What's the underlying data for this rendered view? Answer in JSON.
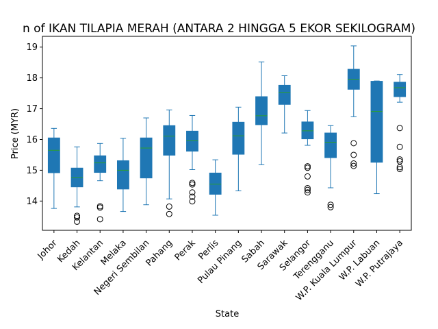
{
  "chart_data": {
    "type": "box",
    "title": "n of IKAN TILAPIA MERAH (ANTARA 2 HINGGA 5 EKOR SEKILOGRAM)",
    "xlabel": "State",
    "ylabel": "Price (MYR)",
    "ylim": [
      13.05,
      19.35
    ],
    "yticks": [
      14,
      15,
      16,
      17,
      18,
      19
    ],
    "grid": false,
    "colors": {
      "box": "#1f77b4",
      "median": "#2ca02c",
      "flier": "#000000"
    },
    "categories": [
      "Johor",
      "Kedah",
      "Kelantan",
      "Melaka",
      "Negeri Sembilan",
      "Pahang",
      "Perak",
      "Perlis",
      "Pulau Pinang",
      "Sabah",
      "Sarawak",
      "Selangor",
      "Terengganu",
      "W.P. Kuala Lumpur",
      "W.P. Labuan",
      "W.P. Putrajaya"
    ],
    "boxes": [
      {
        "whislo": 13.76,
        "q1": 14.92,
        "med": 15.65,
        "q3": 16.05,
        "whishi": 16.36,
        "fliers": []
      },
      {
        "whislo": 13.81,
        "q1": 14.46,
        "med": 14.76,
        "q3": 15.07,
        "whishi": 15.76,
        "fliers": [
          13.52,
          13.47,
          13.33
        ]
      },
      {
        "whislo": 14.66,
        "q1": 14.93,
        "med": 15.24,
        "q3": 15.47,
        "whishi": 15.87,
        "fliers": [
          13.83,
          13.79,
          13.41
        ]
      },
      {
        "whislo": 13.66,
        "q1": 14.39,
        "med": 15.0,
        "q3": 15.31,
        "whishi": 16.04,
        "fliers": []
      },
      {
        "whislo": 13.88,
        "q1": 14.75,
        "med": 15.72,
        "q3": 16.05,
        "whishi": 16.7,
        "fliers": []
      },
      {
        "whislo": 14.07,
        "q1": 15.49,
        "med": 16.11,
        "q3": 16.45,
        "whishi": 16.96,
        "fliers": [
          13.82,
          13.58
        ]
      },
      {
        "whislo": 15.02,
        "q1": 15.62,
        "med": 15.96,
        "q3": 16.27,
        "whishi": 16.78,
        "fliers": [
          14.59,
          14.54,
          14.28,
          14.14,
          13.99
        ]
      },
      {
        "whislo": 13.54,
        "q1": 14.22,
        "med": 14.55,
        "q3": 14.91,
        "whishi": 15.34,
        "fliers": []
      },
      {
        "whislo": 14.33,
        "q1": 15.52,
        "med": 16.12,
        "q3": 16.56,
        "whishi": 17.05,
        "fliers": []
      },
      {
        "whislo": 15.18,
        "q1": 16.48,
        "med": 16.77,
        "q3": 17.39,
        "whishi": 18.52,
        "fliers": []
      },
      {
        "whislo": 16.21,
        "q1": 17.14,
        "med": 17.53,
        "q3": 17.76,
        "whishi": 18.07,
        "fliers": []
      },
      {
        "whislo": 15.81,
        "q1": 16.02,
        "med": 16.28,
        "q3": 16.57,
        "whishi": 16.94,
        "fliers": [
          15.13,
          15.08,
          14.8,
          14.42,
          14.36,
          14.28
        ]
      },
      {
        "whislo": 14.43,
        "q1": 15.41,
        "med": 15.91,
        "q3": 16.21,
        "whishi": 16.45,
        "fliers": [
          13.88,
          13.8
        ]
      },
      {
        "whislo": 16.74,
        "q1": 17.63,
        "med": 17.96,
        "q3": 18.28,
        "whishi": 19.04,
        "fliers": [
          15.88,
          15.5,
          15.22,
          15.14
        ]
      },
      {
        "whislo": 14.24,
        "q1": 15.26,
        "med": 16.91,
        "q3": 17.89,
        "whishi": 17.9,
        "fliers": []
      },
      {
        "whislo": 17.21,
        "q1": 17.39,
        "med": 17.68,
        "q3": 17.86,
        "whishi": 18.11,
        "fliers": [
          16.37,
          15.76,
          15.35,
          15.29,
          15.1,
          15.04
        ]
      }
    ]
  }
}
